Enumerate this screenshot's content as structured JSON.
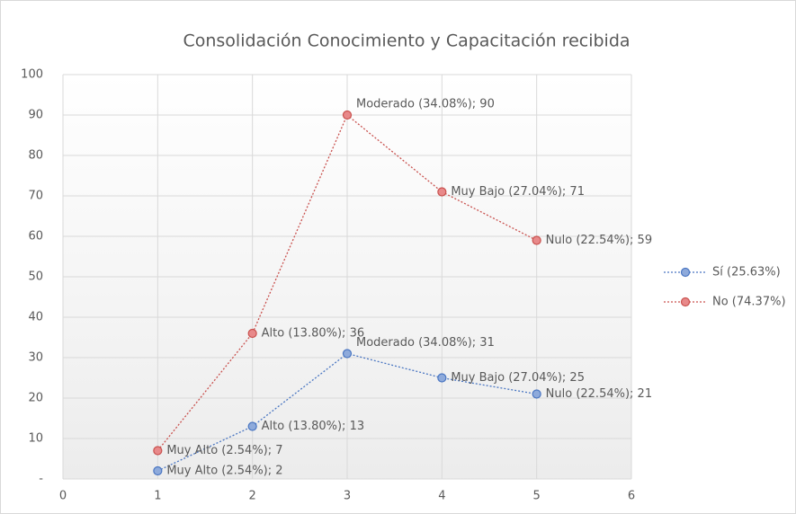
{
  "chart_data": {
    "type": "scatter-line",
    "title": "Consolidación Conocimiento y Capacitación recibida",
    "x": [
      1,
      2,
      3,
      4,
      5
    ],
    "series": [
      {
        "name": "Sí (25.63%)",
        "color": "#4a76c2",
        "marker_fill": "#8eaadb",
        "values": [
          2,
          13,
          31,
          25,
          21
        ],
        "value_labels": [
          "Muy Alto (2.54%); 2",
          "Alto (13.80%); 13",
          "Moderado (34.08%); 31",
          "Muy Bajo (27.04%); 25",
          "Nulo (22.54%); 21"
        ]
      },
      {
        "name": "No (74.37%)",
        "color": "#c9514e",
        "marker_fill": "#e8898a",
        "values": [
          7,
          36,
          90,
          71,
          59
        ],
        "value_labels": [
          "Muy Alto (2.54%); 7",
          "Alto (13.80%); 36",
          "Moderado (34.08%); 90",
          "Muy Bajo (27.04%); 71",
          "Nulo (22.54%); 59"
        ]
      }
    ],
    "xlim": [
      0,
      6
    ],
    "xticks": [
      0,
      1,
      2,
      3,
      4,
      5,
      6
    ],
    "ylim": [
      0,
      100
    ],
    "yticks": [
      {
        "value": 0,
        "label": "-"
      },
      10,
      20,
      30,
      40,
      50,
      60,
      70,
      80,
      90,
      100
    ],
    "grid": true,
    "legend": "right"
  }
}
